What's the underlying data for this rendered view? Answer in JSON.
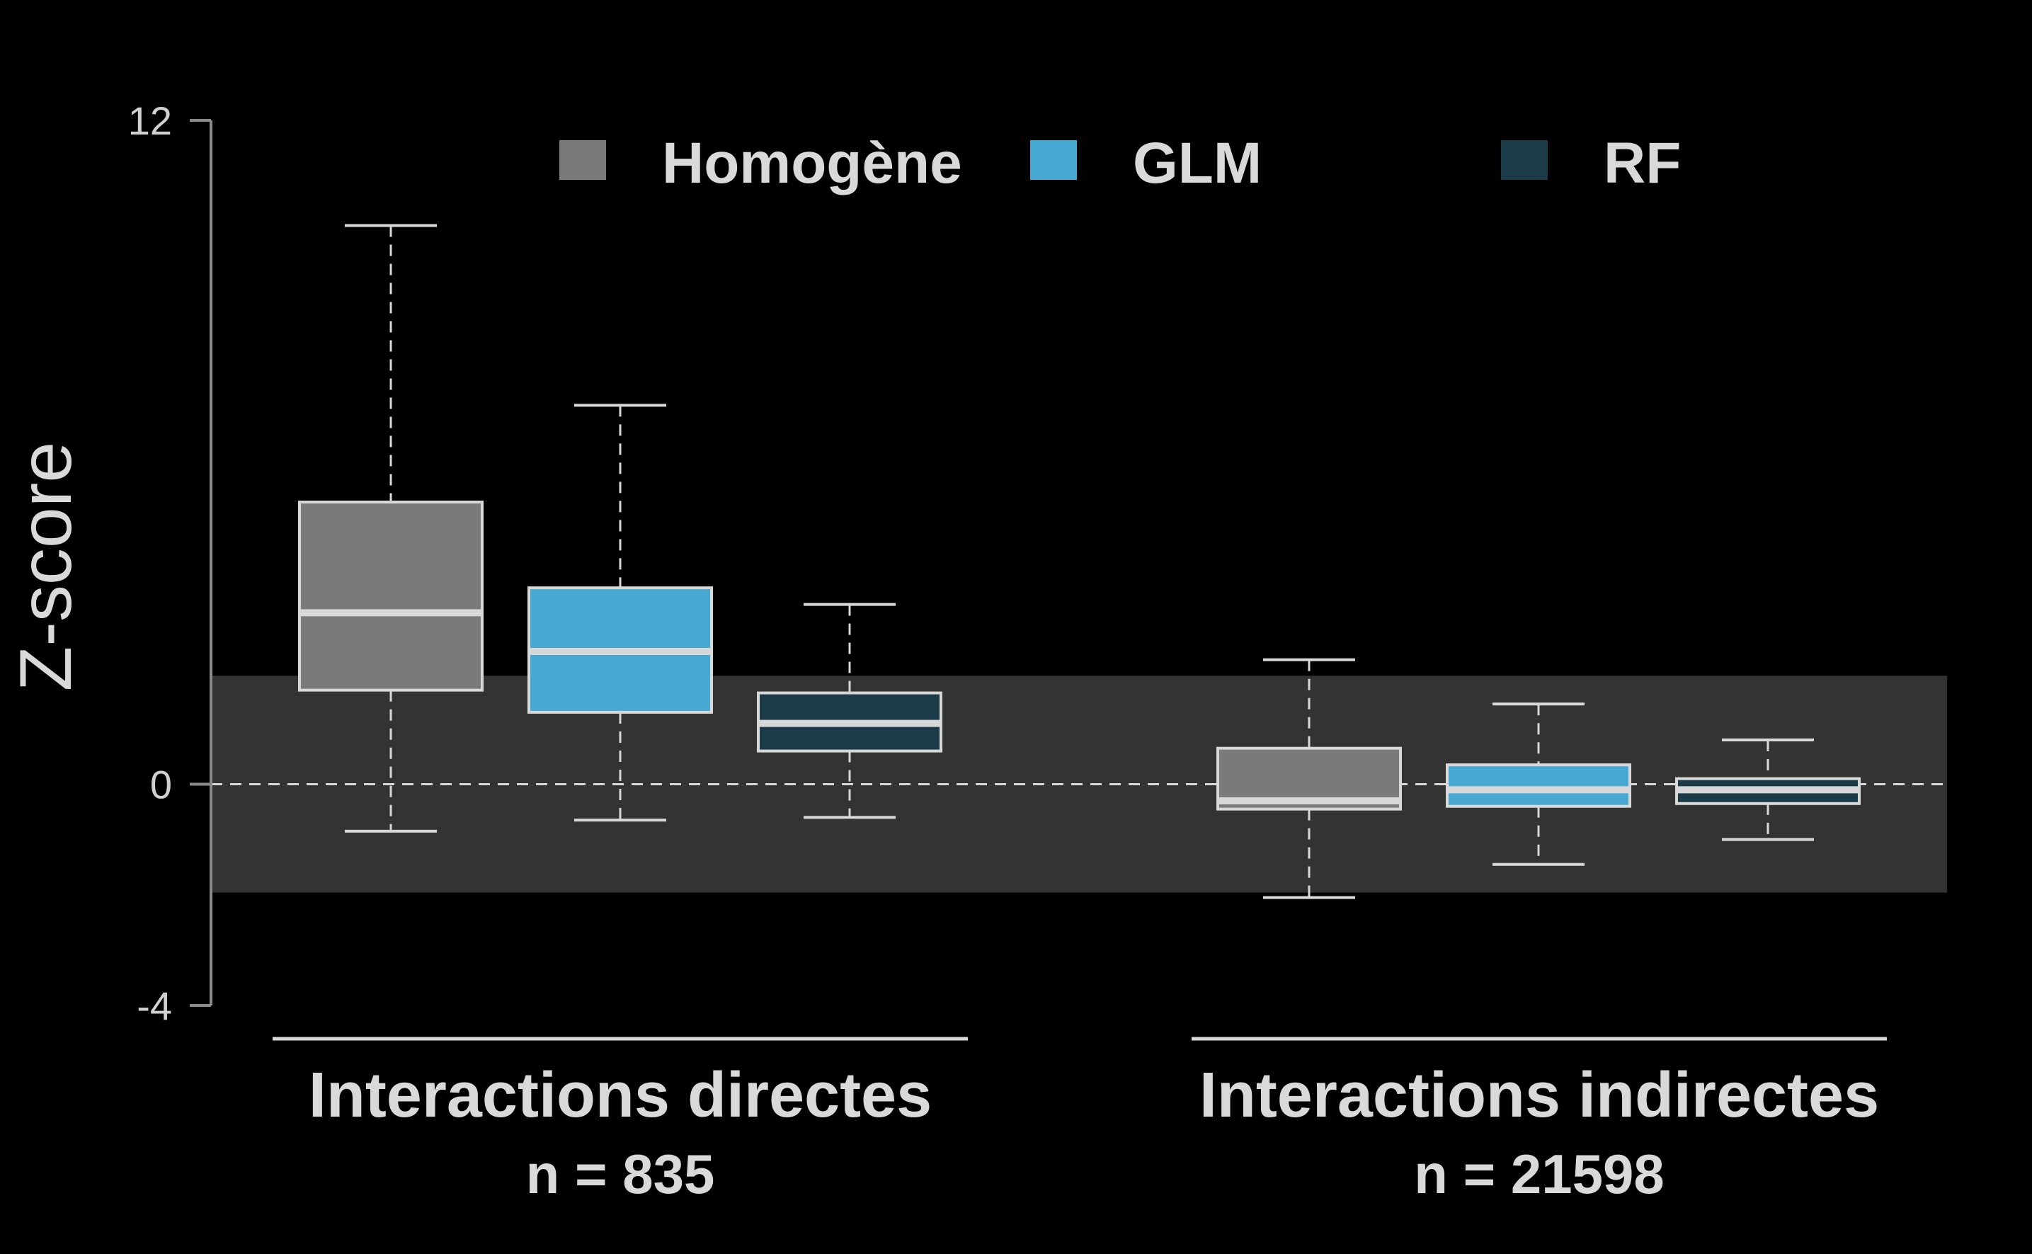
{
  "chart_data": {
    "type": "box",
    "ylabel": "Z-score",
    "xlabel": "",
    "ylim": [
      -4,
      12
    ],
    "yticks": [
      12,
      0,
      -4
    ],
    "ytick_labels": [
      "12",
      "0",
      "-4"
    ],
    "reference_line": 0,
    "shaded_band": [
      -1.96,
      1.96
    ],
    "grid": false,
    "legend_position": "top",
    "series": [
      {
        "name": "Homogène",
        "color": "#7a7a7a"
      },
      {
        "name": "GLM",
        "color": "#47a9d1"
      },
      {
        "name": "RF",
        "color": "#1c3b48"
      }
    ],
    "groups": [
      {
        "label": "Interactions directes",
        "n_label": "n = 835",
        "boxes": [
          {
            "series": "Homogène",
            "whisker_low": -0.85,
            "q1": 1.7,
            "median": 3.1,
            "q3": 5.1,
            "whisker_high": 10.1
          },
          {
            "series": "GLM",
            "whisker_low": -0.65,
            "q1": 1.3,
            "median": 2.4,
            "q3": 3.55,
            "whisker_high": 6.85
          },
          {
            "series": "RF",
            "whisker_low": -0.6,
            "q1": 0.6,
            "median": 1.1,
            "q3": 1.65,
            "whisker_high": 3.25
          }
        ]
      },
      {
        "label": "Interactions indirectes",
        "n_label": "n = 21598",
        "boxes": [
          {
            "series": "Homogène",
            "whisker_low": -2.05,
            "q1": -0.45,
            "median": -0.3,
            "q3": 0.65,
            "whisker_high": 2.25
          },
          {
            "series": "GLM",
            "whisker_low": -1.45,
            "q1": -0.4,
            "median": -0.1,
            "q3": 0.35,
            "whisker_high": 1.45
          },
          {
            "series": "RF",
            "whisker_low": -1.0,
            "q1": -0.35,
            "median": -0.1,
            "q3": 0.1,
            "whisker_high": 0.8
          }
        ]
      }
    ]
  }
}
